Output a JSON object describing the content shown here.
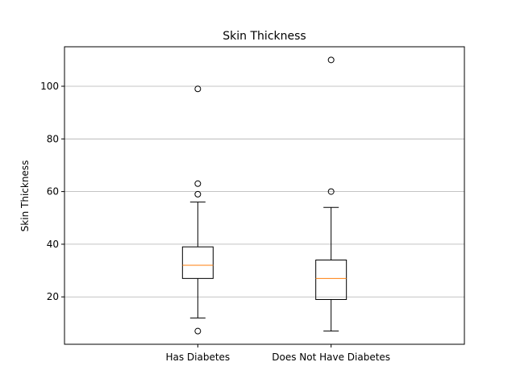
{
  "chart_data": {
    "type": "box",
    "title": "Skin Thickness",
    "xlabel": "",
    "ylabel": "Skin Thickness",
    "categories": [
      "Has Diabetes",
      "Does Not Have Diabetes"
    ],
    "ylim": [
      2,
      115
    ],
    "yticks": [
      20,
      40,
      60,
      80,
      100
    ],
    "grid": "y",
    "boxes": [
      {
        "name": "Has Diabetes",
        "whisker_low": 12,
        "q1": 27,
        "median": 32,
        "q3": 39,
        "whisker_high": 56,
        "outliers": [
          7,
          59,
          63,
          99
        ]
      },
      {
        "name": "Does Not Have Diabetes",
        "whisker_low": 7,
        "q1": 19,
        "median": 27,
        "q3": 34,
        "whisker_high": 54,
        "outliers": [
          60,
          110
        ]
      }
    ],
    "colors": {
      "box": "#000000",
      "median": "#ff7f0e",
      "grid": "#b0b0b0"
    }
  }
}
